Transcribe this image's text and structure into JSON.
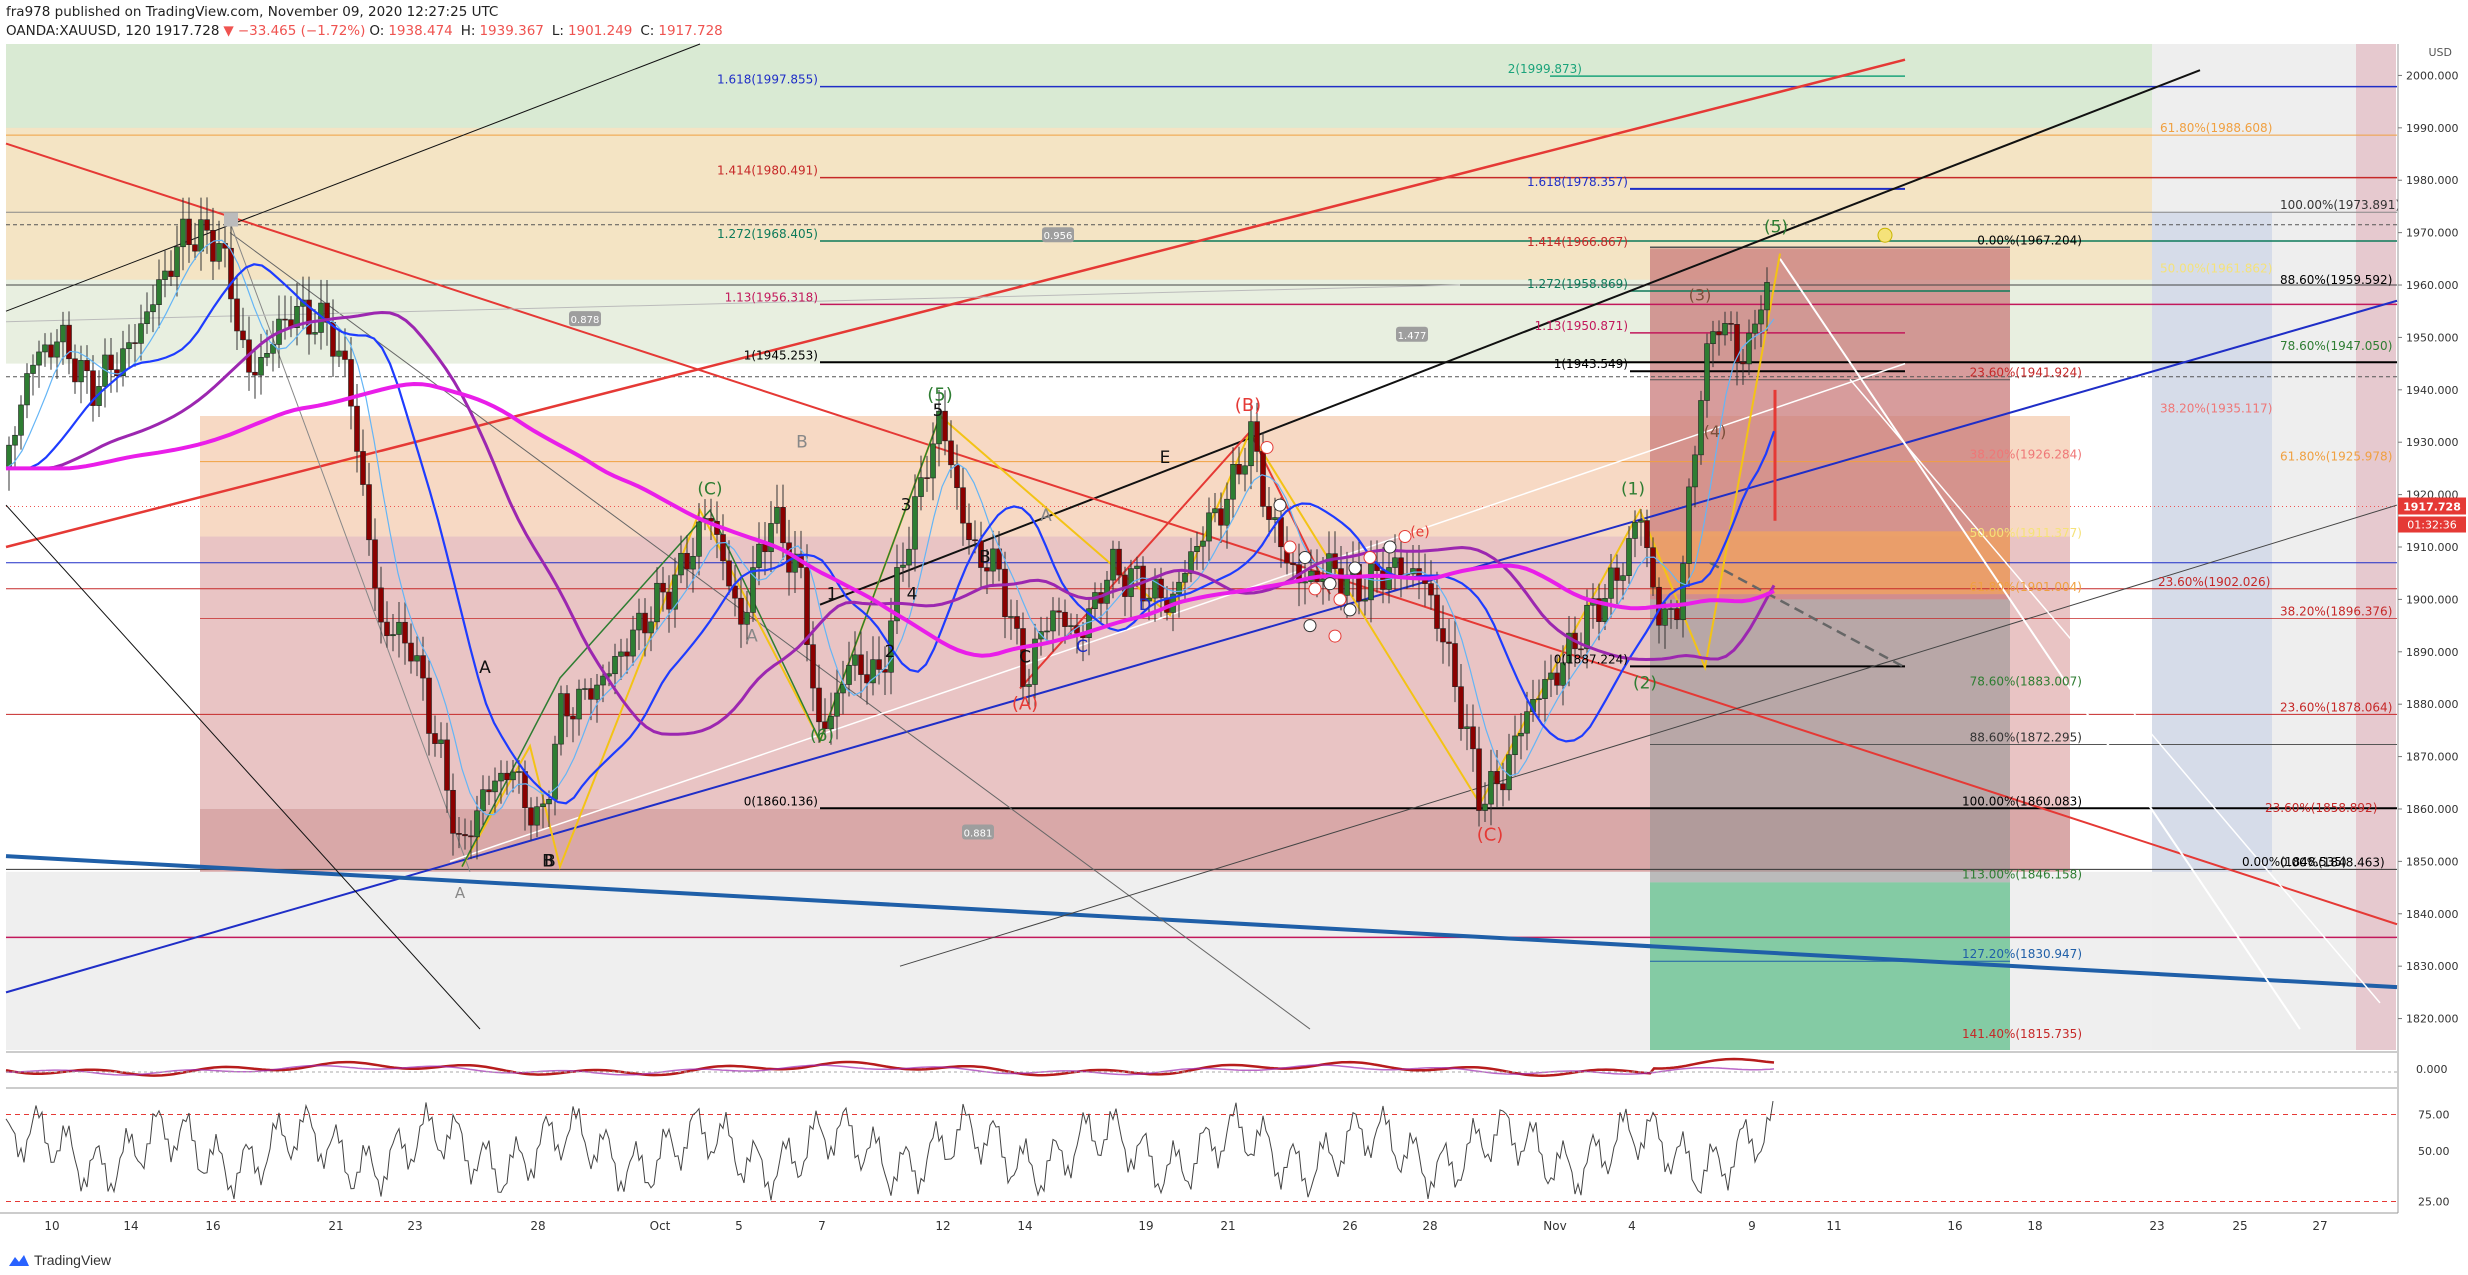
{
  "header": {
    "publish_line": "fra978 published on TradingView.com, November 09, 2020 12:27:25 UTC",
    "symbol": "OANDA:XAUUSD, 120",
    "last": "1917.728",
    "change": "−33.465 (−1.72%)",
    "open_label": "O:",
    "open": "1938.474",
    "high_label": "H:",
    "high": "1939.367",
    "low_label": "L:",
    "low": "1901.249",
    "close_label": "C:",
    "close": "1917.728"
  },
  "currency_label": "USD",
  "price_badge": {
    "value": "1917.728",
    "timer": "01:32:36"
  },
  "footer": {
    "brand": "TradingView"
  },
  "colors": {
    "down": "#ef5350",
    "up": "#26a69a",
    "ma_fast": "#1e3cff",
    "ma_slow": "#9c27b0",
    "ma_magenta": "#e91ee9"
  },
  "chart_data": {
    "type": "candlestick",
    "symbol": "OANDA:XAUUSD",
    "interval": "120",
    "y_axis": {
      "ticks": [
        2000,
        1990,
        1980,
        1970,
        1960,
        1950,
        1940,
        1930,
        1920,
        1910,
        1900,
        1890,
        1880,
        1870,
        1860,
        1850,
        1840,
        1830,
        1820
      ]
    },
    "x_axis": {
      "ticks": [
        "10",
        "14",
        "16",
        "21",
        "23",
        "28",
        "Oct",
        "5",
        "7",
        "12",
        "14",
        "19",
        "21",
        "26",
        "28",
        "Nov",
        "4",
        "9",
        "11",
        "16",
        "18",
        "23",
        "25",
        "27"
      ]
    },
    "fib_levels": [
      {
        "label": "2(1999.873)",
        "value": 1999.873
      },
      {
        "label": "1.618(1997.855)",
        "value": 1997.855
      },
      {
        "label": "61.80%(1988.608)",
        "value": 1988.608
      },
      {
        "label": "1.414(1980.491)",
        "value": 1980.491
      },
      {
        "label": "1.618(1978.357)",
        "value": 1978.357
      },
      {
        "label": "100.00%(1973.891)",
        "value": 1973.891
      },
      {
        "label": "1.272(1968.405)",
        "value": 1968.405
      },
      {
        "label": "0.00%(1967.204)",
        "value": 1967.204
      },
      {
        "label": "1.414(1966.867)",
        "value": 1966.867
      },
      {
        "label": "50.00%(1961.862)",
        "value": 1961.862
      },
      {
        "label": "88.60%(1959.592)",
        "value": 1959.592
      },
      {
        "label": "1.272(1958.869)",
        "value": 1958.869
      },
      {
        "label": "1.13(1956.318)",
        "value": 1956.318
      },
      {
        "label": "1.13(1950.871)",
        "value": 1950.871
      },
      {
        "label": "78.60%(1947.050)",
        "value": 1947.05
      },
      {
        "label": "1(1945.253)",
        "value": 1945.253
      },
      {
        "label": "1(1943.549)",
        "value": 1943.549
      },
      {
        "label": "23.60%(1941.924)",
        "value": 1941.924
      },
      {
        "label": "38.20%(1935.117)",
        "value": 1935.117
      },
      {
        "label": "38.20%(1926.284)",
        "value": 1926.284
      },
      {
        "label": "61.80%(1925.978)",
        "value": 1925.978
      },
      {
        "label": "50.00%(1911.377)",
        "value": 1911.377
      },
      {
        "label": "23.60%(1902.026)",
        "value": 1902.026
      },
      {
        "label": "61.80%(1901.004)",
        "value": 1901.004
      },
      {
        "label": "38.20%(1896.376)",
        "value": 1896.376
      },
      {
        "label": "0(1887.224)",
        "value": 1887.224
      },
      {
        "label": "78.60%(1883.007)",
        "value": 1883.007
      },
      {
        "label": "23.60%(1878.064)",
        "value": 1878.064
      },
      {
        "label": "88.60%(1872.295)",
        "value": 1872.295
      },
      {
        "label": "0(1860.136)",
        "value": 1860.136
      },
      {
        "label": "100.00%(1860.083)",
        "value": 1860.083
      },
      {
        "label": "23.60%(1858.892)",
        "value": 1858.892
      },
      {
        "label": "0.00%(1848.535)",
        "value": 1848.535
      },
      {
        "label": "0.00%(1848.463)",
        "value": 1848.463
      },
      {
        "label": "113.00%(1846.158)",
        "value": 1846.158
      },
      {
        "label": "127.20%(1830.947)",
        "value": 1830.947
      },
      {
        "label": "141.40%(1815.735)",
        "value": 1815.735
      }
    ],
    "ratio_labels": [
      "0.956",
      "0.878",
      "1.477",
      "0.881"
    ],
    "wave_labels": [
      "(5)",
      "(C)",
      "(B)",
      "(A)",
      "(1)",
      "(2)",
      "(3)",
      "(4)",
      "(5)",
      "(C)",
      "(e)",
      "A",
      "B",
      "C",
      "D",
      "E",
      "1",
      "2",
      "3",
      "4",
      "5",
      "(6)",
      "A",
      "B",
      "A",
      "B",
      "C",
      "A",
      "B"
    ],
    "oscillator": {
      "zero_label": "0.000"
    },
    "rsi": {
      "ticks": [
        75,
        50,
        25
      ],
      "upper": 75,
      "lower": 25
    }
  }
}
